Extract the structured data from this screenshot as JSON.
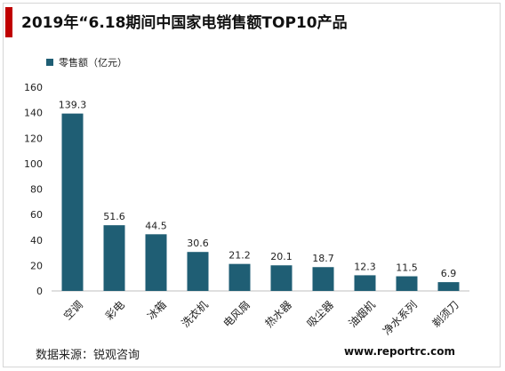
{
  "title": "2019年“6.18期间中国家电销售额TOP10产品",
  "source": "数据来源：锐观咨询",
  "website": "www.reportrc.com",
  "colors": {
    "bar": "#1f5e74",
    "accent": "#c00000",
    "axis": "#bfbfbf"
  },
  "chart_data": {
    "type": "bar",
    "categories": [
      "空调",
      "彩电",
      "冰箱",
      "洗衣机",
      "电风扇",
      "热水器",
      "吸尘器",
      "油烟机",
      "净水系列",
      "剃须刀"
    ],
    "series": [
      {
        "name": "零售额（亿元）",
        "values": [
          139.3,
          51.6,
          44.5,
          30.6,
          21.2,
          20.1,
          18.7,
          12.3,
          11.5,
          6.9
        ]
      }
    ],
    "value_labels": [
      "139.3",
      "51.6",
      "44.5",
      "30.6",
      "21.2",
      "20.1",
      "18.7",
      "12.3",
      "11.5",
      "6.9"
    ],
    "ylim": [
      0,
      160
    ],
    "yticks": [
      0,
      20,
      40,
      60,
      80,
      100,
      120,
      140,
      160
    ],
    "legend_position": "top-left",
    "grid": false
  }
}
